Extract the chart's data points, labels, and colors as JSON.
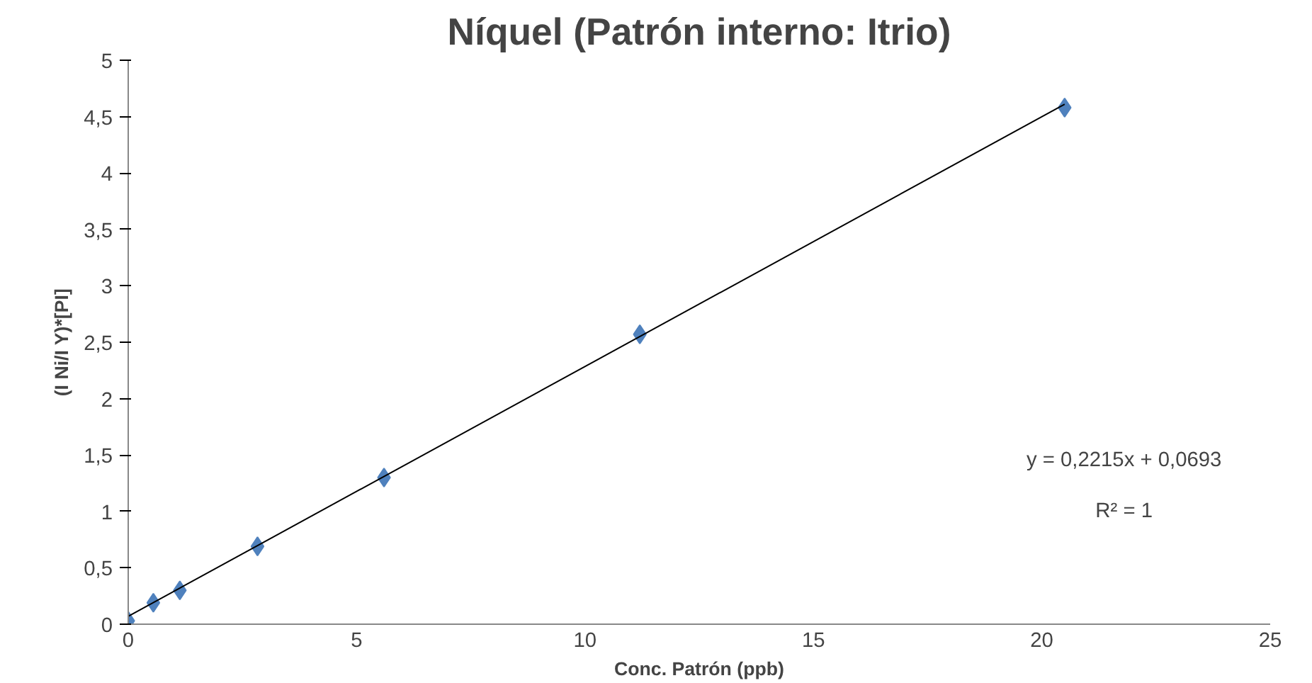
{
  "chart_data": {
    "type": "scatter",
    "title": "Níquel (Patrón interno: Itrio)",
    "xlabel": "Conc. Patrón (ppb)",
    "ylabel": "(I Ni/I Y)*[PI]",
    "series": [
      {
        "color": "#4f81bd",
        "marker": "diamond",
        "x": [
          0,
          0.55,
          1.13,
          2.83,
          5.6,
          11.2,
          20.5
        ],
        "values": [
          0.03,
          0.19,
          0.3,
          0.69,
          1.3,
          2.57,
          4.58
        ]
      },
      {
        "type": "line",
        "color": "#000000",
        "marker": "none",
        "line_style": "solid",
        "x": [
          0,
          20.5
        ],
        "values": [
          0.07,
          4.61
        ]
      }
    ],
    "annotations": [
      "y = 0,2215x + 0,0693",
      "R² = 1"
    ],
    "xlim": [
      0,
      25
    ],
    "xticks": [
      0,
      5,
      10,
      15,
      20,
      25
    ],
    "ylim": [
      0,
      5
    ],
    "yticks": [
      0,
      {
        "value": 0.5,
        "label": "0,5"
      },
      1,
      {
        "value": 1.5,
        "label": "1,5"
      },
      2,
      {
        "value": 2.5,
        "label": "2,5"
      },
      3,
      {
        "value": 3.5,
        "label": "3,5"
      },
      4,
      {
        "value": 4.5,
        "label": "4,5"
      },
      5
    ],
    "grid": false
  }
}
